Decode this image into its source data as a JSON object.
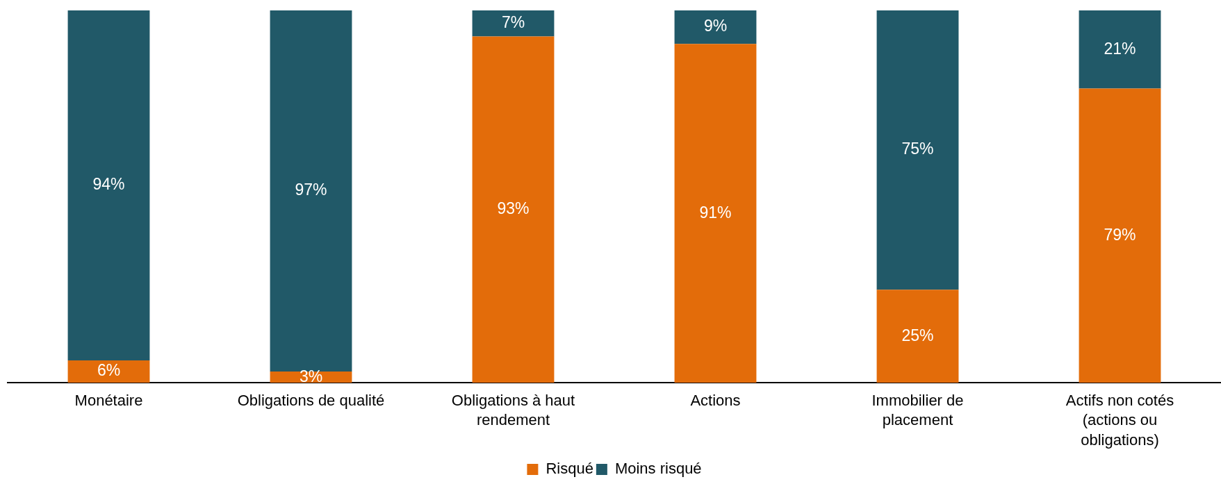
{
  "chart_data": {
    "type": "bar",
    "stacked": true,
    "categories": [
      "Monétaire",
      "Obligations de qualité",
      "Obligations à haut rendement",
      "Actions",
      "Immobilier de placement",
      "Actifs non cotés (actions ou obligations)"
    ],
    "series": [
      {
        "name": "Risqué",
        "color": "#e36c0a",
        "values": [
          6,
          3,
          93,
          91,
          25,
          79
        ],
        "value_labels": [
          "6%",
          "3%",
          "93%",
          "91%",
          "25%",
          "79%"
        ]
      },
      {
        "name": "Moins risqué",
        "color": "#215968",
        "values": [
          94,
          97,
          7,
          9,
          75,
          21
        ],
        "value_labels": [
          "94%",
          "97%",
          "7%",
          "9%",
          "75%",
          "21%"
        ]
      }
    ],
    "ylim": [
      0,
      100
    ],
    "legend": "bottom",
    "tick_labels": "x"
  }
}
